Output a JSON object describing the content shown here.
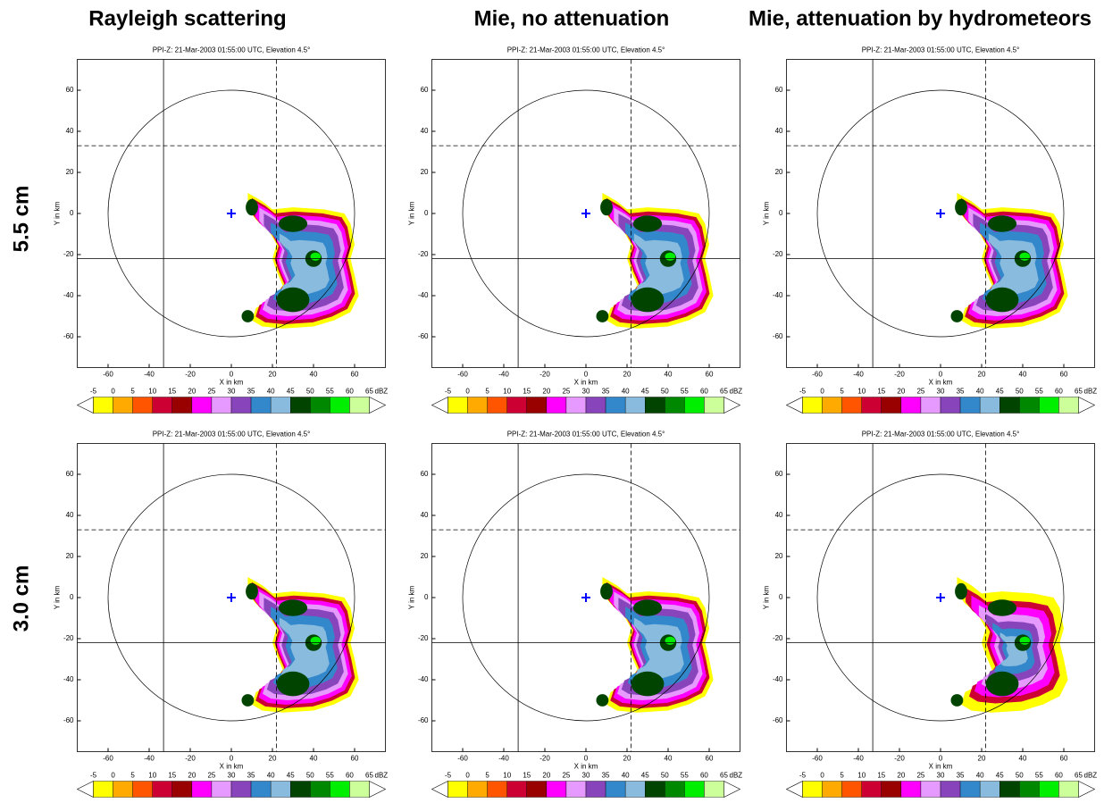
{
  "figure": {
    "column_titles": [
      "Rayleigh scattering",
      "Mie, no attenuation",
      "Mie, attenuation by hydrometeors"
    ],
    "row_labels": [
      "5.5 cm",
      "3.0 cm"
    ]
  },
  "chart_data": [
    {
      "type": "ppi",
      "title": "PPI-Z: 21-Mar-2003 01:55:00 UTC, Elevation 4.5°",
      "xlabel": "X in km",
      "ylabel": "Y in km",
      "xlim": [
        -75,
        75
      ],
      "ylim": [
        -75,
        75
      ],
      "xticks": [
        -60,
        -40,
        -20,
        0,
        20,
        40,
        60
      ],
      "yticks": [
        -60,
        -40,
        -20,
        0,
        20,
        40,
        60
      ],
      "ring_radius": 60,
      "lines": [
        {
          "x": -33,
          "style": "solid"
        },
        {
          "x": 22,
          "style": "dashed"
        },
        {
          "y": 33,
          "style": "dashed"
        },
        {
          "y": -22,
          "style": "solid"
        }
      ],
      "colorbar": {
        "ticks": [
          -5,
          0,
          5,
          10,
          15,
          20,
          25,
          30,
          35,
          40,
          45,
          50,
          55,
          60,
          65
        ],
        "unit": "dBZ",
        "colors": [
          "#ffff00",
          "#ffaa00",
          "#ff5500",
          "#cc0033",
          "#990000",
          "#ff00ff",
          "#e699ff",
          "#8844bb",
          "#3388cc",
          "#88bbdd",
          "#004400",
          "#008800",
          "#00ee00",
          "#ccff99"
        ]
      }
    },
    {
      "type": "ppi",
      "title": "PPI-Z: 21-Mar-2003 01:55:00 UTC, Elevation 4.5°",
      "xlabel": "X in km",
      "ylabel": "Y in km",
      "xlim": [
        -75,
        75
      ],
      "ylim": [
        -75,
        75
      ],
      "xticks": [
        -60,
        -40,
        -20,
        0,
        20,
        40,
        60
      ],
      "yticks": [
        -60,
        -40,
        -20,
        0,
        20,
        40,
        60
      ],
      "ring_radius": 60,
      "lines": [
        {
          "x": -33,
          "style": "solid"
        },
        {
          "x": 22,
          "style": "dashed"
        },
        {
          "y": 33,
          "style": "dashed"
        },
        {
          "y": -22,
          "style": "solid"
        }
      ],
      "colorbar": {
        "ticks": [
          -5,
          0,
          5,
          10,
          15,
          20,
          25,
          30,
          35,
          40,
          45,
          50,
          55,
          60,
          65
        ],
        "unit": "dBZ",
        "colors": [
          "#ffff00",
          "#ffaa00",
          "#ff5500",
          "#cc0033",
          "#990000",
          "#ff00ff",
          "#e699ff",
          "#8844bb",
          "#3388cc",
          "#88bbdd",
          "#004400",
          "#008800",
          "#00ee00",
          "#ccff99"
        ]
      }
    },
    {
      "type": "ppi",
      "title": "PPI-Z: 21-Mar-2003 01:55:00 UTC, Elevation 4.5°",
      "xlabel": "X in km",
      "ylabel": "Y in km",
      "xlim": [
        -75,
        75
      ],
      "ylim": [
        -75,
        75
      ],
      "xticks": [
        -60,
        -40,
        -20,
        0,
        20,
        40,
        60
      ],
      "yticks": [
        -60,
        -40,
        -20,
        0,
        20,
        40,
        60
      ],
      "ring_radius": 60,
      "lines": [
        {
          "x": -33,
          "style": "solid"
        },
        {
          "x": 22,
          "style": "dashed"
        },
        {
          "y": 33,
          "style": "dashed"
        },
        {
          "y": -22,
          "style": "solid"
        }
      ],
      "colorbar": {
        "ticks": [
          -5,
          0,
          5,
          10,
          15,
          20,
          25,
          30,
          35,
          40,
          45,
          50,
          55,
          60,
          65
        ],
        "unit": "dBZ",
        "colors": [
          "#ffff00",
          "#ffaa00",
          "#ff5500",
          "#cc0033",
          "#990000",
          "#ff00ff",
          "#e699ff",
          "#8844bb",
          "#3388cc",
          "#88bbdd",
          "#004400",
          "#008800",
          "#00ee00",
          "#ccff99"
        ]
      }
    },
    {
      "type": "ppi",
      "title": "PPI-Z: 21-Mar-2003 01:55:00 UTC, Elevation 4.5°",
      "xlabel": "X in km",
      "ylabel": "Y in km",
      "xlim": [
        -75,
        75
      ],
      "ylim": [
        -75,
        75
      ],
      "xticks": [
        -60,
        -40,
        -20,
        0,
        20,
        40,
        60
      ],
      "yticks": [
        -60,
        -40,
        -20,
        0,
        20,
        40,
        60
      ],
      "ring_radius": 60,
      "lines": [
        {
          "x": -33,
          "style": "solid"
        },
        {
          "x": 22,
          "style": "dashed"
        },
        {
          "y": 33,
          "style": "dashed"
        },
        {
          "y": -22,
          "style": "solid"
        }
      ],
      "colorbar": {
        "ticks": [
          -5,
          0,
          5,
          10,
          15,
          20,
          25,
          30,
          35,
          40,
          45,
          50,
          55,
          60,
          65
        ],
        "unit": "dBZ",
        "colors": [
          "#ffff00",
          "#ffaa00",
          "#ff5500",
          "#cc0033",
          "#990000",
          "#ff00ff",
          "#e699ff",
          "#8844bb",
          "#3388cc",
          "#88bbdd",
          "#004400",
          "#008800",
          "#00ee00",
          "#ccff99"
        ]
      }
    },
    {
      "type": "ppi",
      "title": "PPI-Z: 21-Mar-2003 01:55:00 UTC, Elevation 4.5°",
      "xlabel": "X in km",
      "ylabel": "Y in km",
      "xlim": [
        -75,
        75
      ],
      "ylim": [
        -75,
        75
      ],
      "xticks": [
        -60,
        -40,
        -20,
        0,
        20,
        40,
        60
      ],
      "yticks": [
        -60,
        -40,
        -20,
        0,
        20,
        40,
        60
      ],
      "ring_radius": 60,
      "lines": [
        {
          "x": -33,
          "style": "solid"
        },
        {
          "x": 22,
          "style": "dashed"
        },
        {
          "y": 33,
          "style": "dashed"
        },
        {
          "y": -22,
          "style": "solid"
        }
      ],
      "colorbar": {
        "ticks": [
          -5,
          0,
          5,
          10,
          15,
          20,
          25,
          30,
          35,
          40,
          45,
          50,
          55,
          60,
          65
        ],
        "unit": "dBZ",
        "colors": [
          "#ffff00",
          "#ffaa00",
          "#ff5500",
          "#cc0033",
          "#990000",
          "#ff00ff",
          "#e699ff",
          "#8844bb",
          "#3388cc",
          "#88bbdd",
          "#004400",
          "#008800",
          "#00ee00",
          "#ccff99"
        ]
      }
    },
    {
      "type": "ppi",
      "title": "PPI-Z: 21-Mar-2003 01:55:00 UTC, Elevation 4.5°",
      "xlabel": "X in km",
      "ylabel": "Y in km",
      "xlim": [
        -75,
        75
      ],
      "ylim": [
        -75,
        75
      ],
      "xticks": [
        -60,
        -40,
        -20,
        0,
        20,
        40,
        60
      ],
      "yticks": [
        -60,
        -40,
        -20,
        0,
        20,
        40,
        60
      ],
      "ring_radius": 60,
      "lines": [
        {
          "x": -33,
          "style": "solid"
        },
        {
          "x": 22,
          "style": "dashed"
        },
        {
          "y": 33,
          "style": "dashed"
        },
        {
          "y": -22,
          "style": "solid"
        }
      ],
      "colorbar": {
        "ticks": [
          -5,
          0,
          5,
          10,
          15,
          20,
          25,
          30,
          35,
          40,
          45,
          50,
          55,
          60,
          65
        ],
        "unit": "dBZ",
        "colors": [
          "#ffff00",
          "#ffaa00",
          "#ff5500",
          "#cc0033",
          "#990000",
          "#ff00ff",
          "#e699ff",
          "#8844bb",
          "#3388cc",
          "#88bbdd",
          "#004400",
          "#008800",
          "#00ee00",
          "#ccff99"
        ]
      }
    }
  ]
}
